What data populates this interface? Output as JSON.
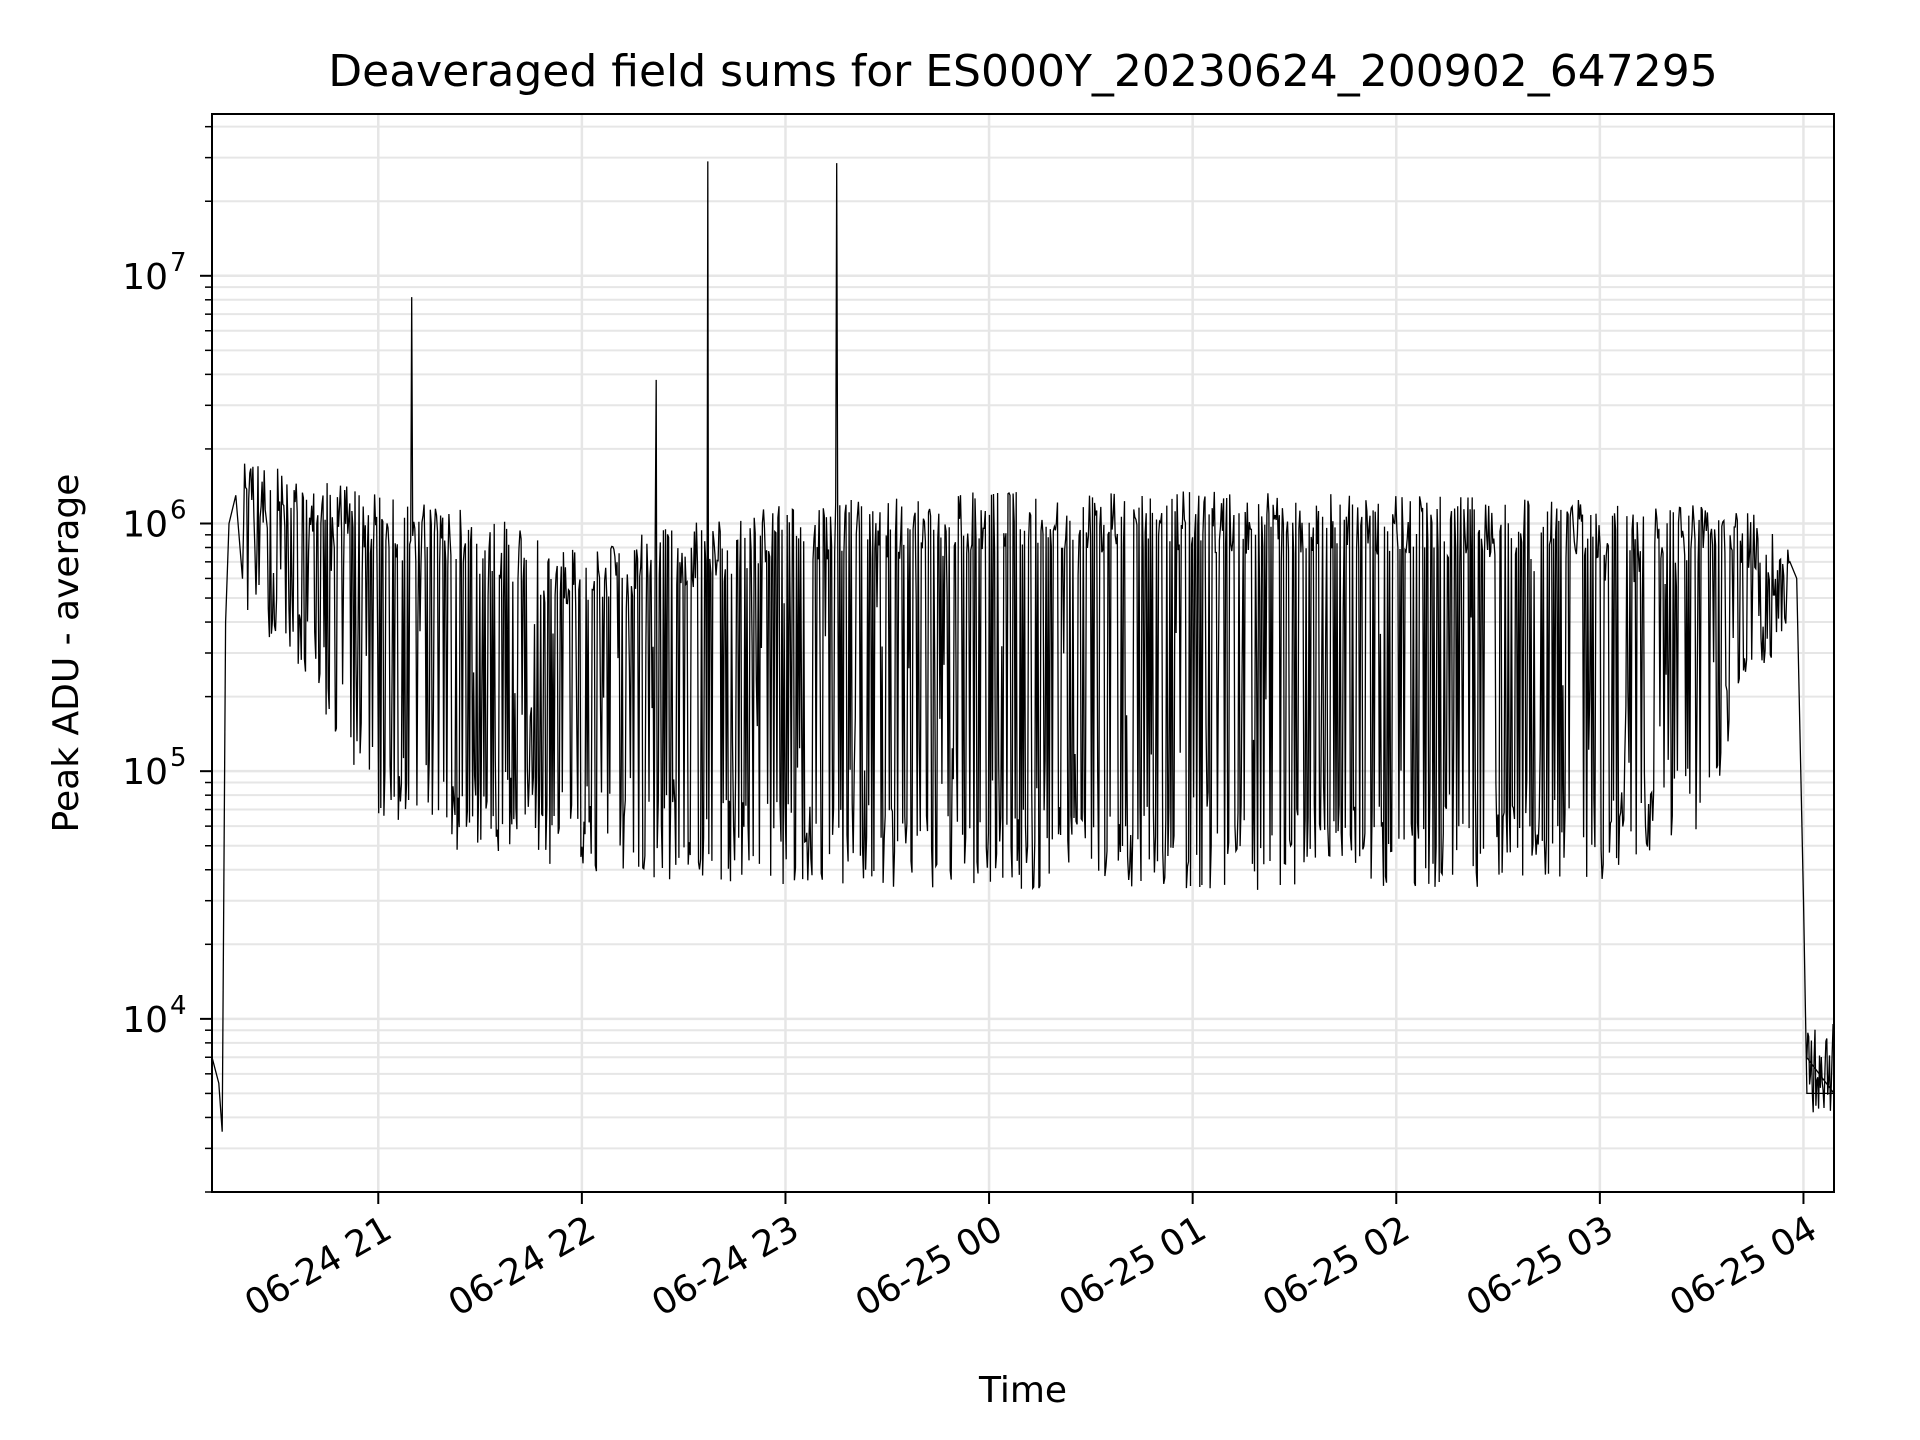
{
  "chart_data": {
    "type": "line",
    "title": "Deaveraged field sums for ES000Y_20230624_200902_647295",
    "xlabel": "Time",
    "ylabel": "Peak ADU - average",
    "yscale": "log",
    "ylim": [
      2000,
      45000000
    ],
    "xlim": [
      "2023-06-24 20:11",
      "2023-06-25 04:09"
    ],
    "grid": true,
    "line_color": "#000000",
    "grid_color": "#e6e6e6",
    "x_ticks": [
      "2023-06-24 21:00",
      "2023-06-24 22:00",
      "2023-06-24 23:00",
      "2023-06-25 00:00",
      "2023-06-25 01:00",
      "2023-06-25 02:00",
      "2023-06-25 03:00",
      "2023-06-25 04:00"
    ],
    "x_tick_labels": [
      "06-24 21",
      "06-24 22",
      "06-24 23",
      "06-25 00",
      "06-25 01",
      "06-25 02",
      "06-25 03",
      "06-25 04"
    ],
    "y_ticks": [
      {
        "base": "10",
        "exp": "4"
      },
      {
        "base": "10",
        "exp": "5"
      },
      {
        "base": "10",
        "exp": "6"
      },
      {
        "base": "10",
        "exp": "7"
      }
    ],
    "series": [
      {
        "x": [
          "2023-06-24 20:11",
          "2023-06-24 20:13",
          "2023-06-24 20:14",
          "2023-06-24 20:15",
          "2023-06-24 20:16",
          "2023-06-24 20:18",
          "2023-06-24 20:21",
          "2023-06-24 20:25",
          "2023-06-24 20:30",
          "2023-06-24 20:35",
          "2023-06-24 20:45",
          "2023-06-24 20:55",
          "2023-06-24 21:09",
          "2023-06-24 21:10",
          "2023-06-24 21:11",
          "2023-06-24 21:25",
          "2023-06-24 21:45",
          "2023-06-24 22:05",
          "2023-06-24 22:25",
          "2023-06-24 22:36",
          "2023-06-24 22:37",
          "2023-06-24 22:38",
          "2023-06-24 22:45",
          "2023-06-24 23:10",
          "2023-06-24 23:14",
          "2023-06-24 23:15",
          "2023-06-24 23:16",
          "2023-06-24 23:35",
          "2023-06-25 00:00",
          "2023-06-25 00:30",
          "2023-06-25 01:00",
          "2023-06-25 01:30",
          "2023-06-25 02:00",
          "2023-06-25 02:30",
          "2023-06-25 03:00",
          "2023-06-25 03:20",
          "2023-06-25 03:35",
          "2023-06-25 03:50",
          "2023-06-25 03:55",
          "2023-06-25 03:58",
          "2023-06-25 04:00",
          "2023-06-25 04:01",
          "2023-06-25 04:09"
        ],
        "y": [
          7000,
          5500,
          3500,
          400000,
          1000000,
          1300000,
          1000000,
          600000,
          700000,
          400000,
          200000,
          100000,
          70000,
          8200000,
          80000,
          70000,
          70000,
          60000,
          50000,
          50000,
          29000000,
          50000,
          50000,
          50000,
          28500000,
          50000,
          50000,
          50000,
          50000,
          50000,
          50000,
          50000,
          50000,
          60000,
          70000,
          150000,
          350000,
          700000,
          1050000,
          600000,
          30000,
          5000,
          5000
        ]
      }
    ],
    "envelope_upper": {
      "x": [
        "2023-06-24 20:25",
        "2023-06-24 20:45",
        "2023-06-24 21:00",
        "2023-06-24 21:30",
        "2023-06-24 22:00",
        "2023-06-24 22:30",
        "2023-06-24 23:00",
        "2023-06-25 00:00",
        "2023-06-25 01:00",
        "2023-06-25 02:00",
        "2023-06-25 03:00",
        "2023-06-25 03:30",
        "2023-06-25 03:55"
      ],
      "y": [
        1800000,
        1500000,
        1300000,
        1100000,
        800000,
        1000000,
        1200000,
        1350000,
        1350000,
        1300000,
        1250000,
        1200000,
        1050000
      ]
    },
    "envelope_lower": {
      "x": [
        "2023-06-24 20:25",
        "2023-06-24 20:45",
        "2023-06-24 21:00",
        "2023-06-24 21:30",
        "2023-06-24 22:00",
        "2023-06-24 22:30",
        "2023-06-24 23:00",
        "2023-06-25 00:00",
        "2023-06-25 01:00",
        "2023-06-25 02:00",
        "2023-06-25 03:00",
        "2023-06-25 03:30",
        "2023-06-25 03:55"
      ],
      "y": [
        400000,
        150000,
        60000,
        45000,
        40000,
        35000,
        35000,
        33000,
        33000,
        33000,
        35000,
        60000,
        400000
      ]
    }
  }
}
